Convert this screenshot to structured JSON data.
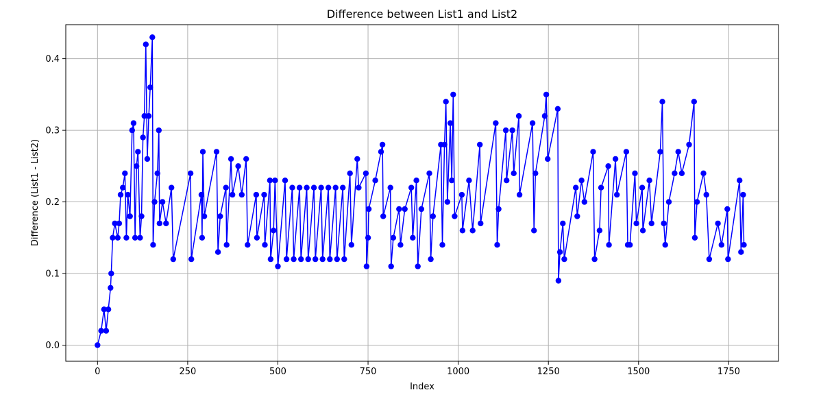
{
  "chart_data": {
    "type": "line",
    "title": "Difference between List1 and List2",
    "xlabel": "Index",
    "ylabel": "Difference (List1 - List2)",
    "xlim": [
      -88,
      1888
    ],
    "ylim": [
      -0.0225,
      0.4475
    ],
    "xticks": [
      0,
      250,
      500,
      750,
      1000,
      1250,
      1500,
      1750
    ],
    "xtick_labels": [
      "0",
      "250",
      "500",
      "750",
      "1000",
      "1250",
      "1500",
      "1750"
    ],
    "yticks": [
      0.0,
      0.1,
      0.2,
      0.3,
      0.4
    ],
    "ytick_labels": [
      "0.0",
      "0.1",
      "0.2",
      "0.3",
      "0.4"
    ],
    "grid": true,
    "series": [
      {
        "name": "Difference",
        "color": "#0000ff",
        "marker": "circle",
        "points": [
          [
            0,
            0.0
          ],
          [
            10,
            0.02
          ],
          [
            18,
            0.05
          ],
          [
            24,
            0.02
          ],
          [
            30,
            0.05
          ],
          [
            36,
            0.08
          ],
          [
            38,
            0.1
          ],
          [
            42,
            0.15
          ],
          [
            48,
            0.17
          ],
          [
            56,
            0.15
          ],
          [
            60,
            0.17
          ],
          [
            64,
            0.21
          ],
          [
            70,
            0.22
          ],
          [
            76,
            0.24
          ],
          [
            80,
            0.15
          ],
          [
            84,
            0.21
          ],
          [
            90,
            0.18
          ],
          [
            96,
            0.3
          ],
          [
            100,
            0.31
          ],
          [
            104,
            0.15
          ],
          [
            108,
            0.25
          ],
          [
            112,
            0.27
          ],
          [
            118,
            0.15
          ],
          [
            122,
            0.18
          ],
          [
            126,
            0.29
          ],
          [
            130,
            0.32
          ],
          [
            134,
            0.42
          ],
          [
            138,
            0.26
          ],
          [
            142,
            0.32
          ],
          [
            146,
            0.36
          ],
          [
            152,
            0.43
          ],
          [
            154,
            0.14
          ],
          [
            158,
            0.2
          ],
          [
            166,
            0.24
          ],
          [
            170,
            0.3
          ],
          [
            172,
            0.17
          ],
          [
            180,
            0.2
          ],
          [
            190,
            0.17
          ],
          [
            205,
            0.22
          ],
          [
            210,
            0.12
          ],
          [
            258,
            0.24
          ],
          [
            260,
            0.12
          ],
          [
            288,
            0.21
          ],
          [
            290,
            0.15
          ],
          [
            292,
            0.27
          ],
          [
            296,
            0.18
          ],
          [
            330,
            0.27
          ],
          [
            334,
            0.13
          ],
          [
            340,
            0.18
          ],
          [
            356,
            0.22
          ],
          [
            358,
            0.14
          ],
          [
            370,
            0.26
          ],
          [
            374,
            0.21
          ],
          [
            390,
            0.25
          ],
          [
            400,
            0.21
          ],
          [
            412,
            0.26
          ],
          [
            416,
            0.14
          ],
          [
            440,
            0.21
          ],
          [
            442,
            0.15
          ],
          [
            462,
            0.21
          ],
          [
            464,
            0.14
          ],
          [
            478,
            0.23
          ],
          [
            480,
            0.12
          ],
          [
            488,
            0.16
          ],
          [
            492,
            0.23
          ],
          [
            500,
            0.11
          ],
          [
            520,
            0.23
          ],
          [
            524,
            0.12
          ],
          [
            540,
            0.22
          ],
          [
            544,
            0.12
          ],
          [
            560,
            0.22
          ],
          [
            564,
            0.12
          ],
          [
            580,
            0.22
          ],
          [
            584,
            0.12
          ],
          [
            600,
            0.22
          ],
          [
            604,
            0.12
          ],
          [
            620,
            0.22
          ],
          [
            624,
            0.12
          ],
          [
            640,
            0.22
          ],
          [
            644,
            0.12
          ],
          [
            660,
            0.22
          ],
          [
            664,
            0.12
          ],
          [
            680,
            0.22
          ],
          [
            684,
            0.12
          ],
          [
            700,
            0.24
          ],
          [
            704,
            0.14
          ],
          [
            720,
            0.26
          ],
          [
            724,
            0.22
          ],
          [
            744,
            0.24
          ],
          [
            746,
            0.11
          ],
          [
            750,
            0.15
          ],
          [
            752,
            0.19
          ],
          [
            770,
            0.23
          ],
          [
            786,
            0.27
          ],
          [
            790,
            0.28
          ],
          [
            792,
            0.18
          ],
          [
            812,
            0.22
          ],
          [
            814,
            0.11
          ],
          [
            820,
            0.15
          ],
          [
            836,
            0.19
          ],
          [
            840,
            0.14
          ],
          [
            852,
            0.19
          ],
          [
            870,
            0.22
          ],
          [
            874,
            0.15
          ],
          [
            884,
            0.23
          ],
          [
            888,
            0.11
          ],
          [
            898,
            0.19
          ],
          [
            920,
            0.24
          ],
          [
            924,
            0.12
          ],
          [
            930,
            0.18
          ],
          [
            952,
            0.28
          ],
          [
            956,
            0.14
          ],
          [
            962,
            0.28
          ],
          [
            966,
            0.34
          ],
          [
            970,
            0.2
          ],
          [
            978,
            0.31
          ],
          [
            982,
            0.23
          ],
          [
            986,
            0.35
          ],
          [
            990,
            0.18
          ],
          [
            1010,
            0.21
          ],
          [
            1012,
            0.16
          ],
          [
            1030,
            0.23
          ],
          [
            1040,
            0.16
          ],
          [
            1060,
            0.28
          ],
          [
            1062,
            0.17
          ],
          [
            1104,
            0.31
          ],
          [
            1108,
            0.14
          ],
          [
            1112,
            0.19
          ],
          [
            1132,
            0.3
          ],
          [
            1134,
            0.23
          ],
          [
            1150,
            0.3
          ],
          [
            1154,
            0.24
          ],
          [
            1168,
            0.32
          ],
          [
            1170,
            0.21
          ],
          [
            1206,
            0.31
          ],
          [
            1210,
            0.16
          ],
          [
            1214,
            0.24
          ],
          [
            1240,
            0.32
          ],
          [
            1244,
            0.35
          ],
          [
            1248,
            0.26
          ],
          [
            1276,
            0.33
          ],
          [
            1278,
            0.09
          ],
          [
            1282,
            0.13
          ],
          [
            1290,
            0.17
          ],
          [
            1294,
            0.12
          ],
          [
            1326,
            0.22
          ],
          [
            1330,
            0.18
          ],
          [
            1342,
            0.23
          ],
          [
            1350,
            0.2
          ],
          [
            1374,
            0.27
          ],
          [
            1378,
            0.12
          ],
          [
            1392,
            0.16
          ],
          [
            1396,
            0.22
          ],
          [
            1416,
            0.25
          ],
          [
            1418,
            0.14
          ],
          [
            1436,
            0.26
          ],
          [
            1440,
            0.21
          ],
          [
            1466,
            0.27
          ],
          [
            1470,
            0.14
          ],
          [
            1476,
            0.14
          ],
          [
            1490,
            0.24
          ],
          [
            1494,
            0.17
          ],
          [
            1510,
            0.22
          ],
          [
            1512,
            0.16
          ],
          [
            1530,
            0.23
          ],
          [
            1536,
            0.17
          ],
          [
            1560,
            0.27
          ],
          [
            1566,
            0.34
          ],
          [
            1570,
            0.17
          ],
          [
            1574,
            0.14
          ],
          [
            1584,
            0.2
          ],
          [
            1600,
            0.24
          ],
          [
            1610,
            0.27
          ],
          [
            1620,
            0.24
          ],
          [
            1640,
            0.28
          ],
          [
            1654,
            0.34
          ],
          [
            1656,
            0.15
          ],
          [
            1662,
            0.2
          ],
          [
            1680,
            0.24
          ],
          [
            1688,
            0.21
          ],
          [
            1696,
            0.12
          ],
          [
            1720,
            0.17
          ],
          [
            1730,
            0.14
          ],
          [
            1746,
            0.19
          ],
          [
            1748,
            0.12
          ],
          [
            1780,
            0.23
          ],
          [
            1784,
            0.13
          ],
          [
            1790,
            0.21
          ],
          [
            1792,
            0.14
          ]
        ]
      }
    ]
  }
}
